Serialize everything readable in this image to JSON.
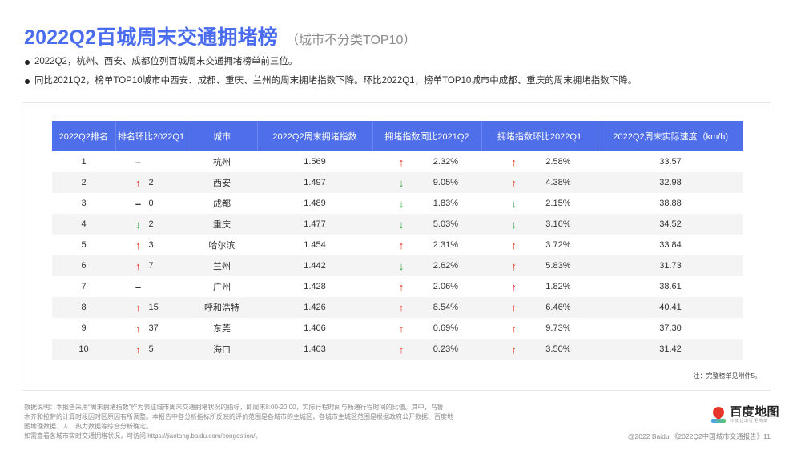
{
  "header": {
    "title": "2022Q2百城周末交通拥堵榜",
    "subtitle": "（城市不分类TOP10）"
  },
  "bullets": [
    "2022Q2，杭州、西安、成都位列百城周末交通拥堵榜单前三位。",
    "同比2021Q2，榜单TOP10城市中西安、成都、重庆、兰州的周末拥堵指数下降。环比2022Q1，榜单TOP10城市中成都、重庆的周末拥堵指数下降。"
  ],
  "colors": {
    "accent": "#4a6cf0",
    "header_bg": "#4f6ee9",
    "up": "#ee2a1a",
    "down": "#2aa83a",
    "stripe": "#f4f4f4"
  },
  "table": {
    "columns": [
      "2022Q2排名",
      "排名环比2022Q1",
      "城市",
      "2022Q2周末拥堵指数",
      "拥堵指数同比2021Q2",
      "拥堵指数环比2022Q1",
      "2022Q2周末实际速度（km/h)"
    ],
    "rows": [
      {
        "rank": "1",
        "rank_dir": "flat",
        "rank_arrow": "–",
        "rank_change": "",
        "city": "杭州",
        "index": "1.569",
        "yoy_dir": "up",
        "yoy_arrow": "↑",
        "yoy": "2.32%",
        "qoq_dir": "up",
        "qoq_arrow": "↑",
        "qoq": "2.58%",
        "speed": "33.57"
      },
      {
        "rank": "2",
        "rank_dir": "up",
        "rank_arrow": "↑",
        "rank_change": "2",
        "city": "西安",
        "index": "1.497",
        "yoy_dir": "down",
        "yoy_arrow": "↓",
        "yoy": "9.05%",
        "qoq_dir": "up",
        "qoq_arrow": "↑",
        "qoq": "4.38%",
        "speed": "32.98"
      },
      {
        "rank": "3",
        "rank_dir": "flat",
        "rank_arrow": "–",
        "rank_change": "0",
        "city": "成都",
        "index": "1.489",
        "yoy_dir": "down",
        "yoy_arrow": "↓",
        "yoy": "1.83%",
        "qoq_dir": "down",
        "qoq_arrow": "↓",
        "qoq": "2.15%",
        "speed": "38.88"
      },
      {
        "rank": "4",
        "rank_dir": "down",
        "rank_arrow": "↓",
        "rank_change": "2",
        "city": "重庆",
        "index": "1.477",
        "yoy_dir": "down",
        "yoy_arrow": "↓",
        "yoy": "5.03%",
        "qoq_dir": "down",
        "qoq_arrow": "↓",
        "qoq": "3.16%",
        "speed": "34.52"
      },
      {
        "rank": "5",
        "rank_dir": "up",
        "rank_arrow": "↑",
        "rank_change": "3",
        "city": "哈尔滨",
        "index": "1.454",
        "yoy_dir": "up",
        "yoy_arrow": "↑",
        "yoy": "2.31%",
        "qoq_dir": "up",
        "qoq_arrow": "↑",
        "qoq": "3.72%",
        "speed": "33.84"
      },
      {
        "rank": "6",
        "rank_dir": "up",
        "rank_arrow": "↑",
        "rank_change": "7",
        "city": "兰州",
        "index": "1.442",
        "yoy_dir": "down",
        "yoy_arrow": "↓",
        "yoy": "2.62%",
        "qoq_dir": "up",
        "qoq_arrow": "↑",
        "qoq": "5.83%",
        "speed": "31.73"
      },
      {
        "rank": "7",
        "rank_dir": "flat",
        "rank_arrow": "–",
        "rank_change": "",
        "city": "广州",
        "index": "1.428",
        "yoy_dir": "up",
        "yoy_arrow": "↑",
        "yoy": "2.06%",
        "qoq_dir": "up",
        "qoq_arrow": "↑",
        "qoq": "1.82%",
        "speed": "38.61"
      },
      {
        "rank": "8",
        "rank_dir": "up",
        "rank_arrow": "↑",
        "rank_change": "15",
        "city": "呼和浩特",
        "index": "1.426",
        "yoy_dir": "up",
        "yoy_arrow": "↑",
        "yoy": "8.54%",
        "qoq_dir": "up",
        "qoq_arrow": "↑",
        "qoq": "6.46%",
        "speed": "40.41"
      },
      {
        "rank": "9",
        "rank_dir": "up",
        "rank_arrow": "↑",
        "rank_change": "37",
        "city": "东莞",
        "index": "1.406",
        "yoy_dir": "up",
        "yoy_arrow": "↑",
        "yoy": "0.69%",
        "qoq_dir": "up",
        "qoq_arrow": "↑",
        "qoq": "9.73%",
        "speed": "37.30"
      },
      {
        "rank": "10",
        "rank_dir": "up",
        "rank_arrow": "↑",
        "rank_change": "5",
        "city": "海口",
        "index": "1.403",
        "yoy_dir": "up",
        "yoy_arrow": "↑",
        "yoy": "0.23%",
        "qoq_dir": "up",
        "qoq_arrow": "↑",
        "qoq": "3.50%",
        "speed": "31.42"
      }
    ],
    "note": "注：完整榜单见附件5。"
  },
  "footer": {
    "lines": [
      "数据说明：本报告采用“周末拥堵指数”作为表征城市周末交通拥堵状况的指标，即周末8:00-20:00，实际行程时间与畅通行程时间的比值。其中，乌鲁",
      "木齐和拉萨的计算时段因时区原因有所调整。本报告中各分析指标所反映的评价范围是各城市的主城区，各城市主城区范围是根据政府公开数据、百度地",
      "图地理数据、人口热力数据等综合分析确定。",
      "如需查看各城市实时交通拥堵状况，可访问 https://jiaotong.baidu.com/congestion/。"
    ],
    "logo_brand": "百度地图",
    "logo_slogan": "科技让出行更简单",
    "copyright": "@2022 Baidu 《2022Q2中国城市交通报告》11"
  }
}
